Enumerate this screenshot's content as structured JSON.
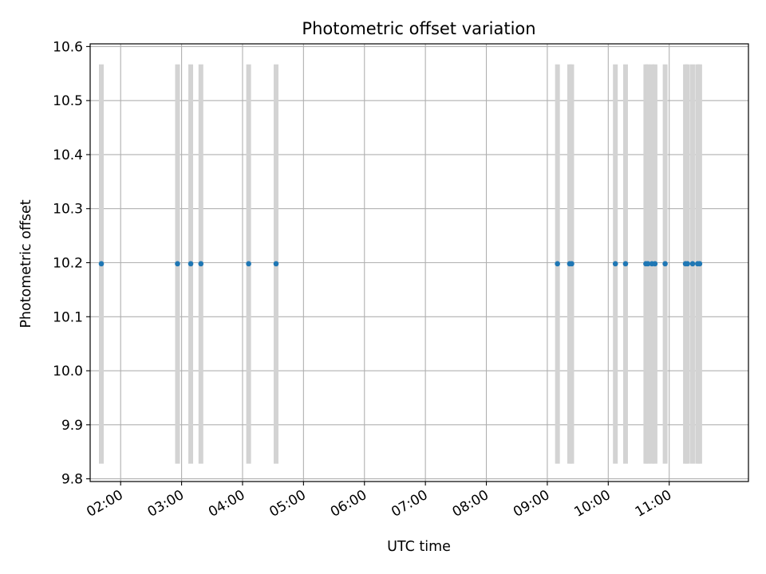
{
  "chart_data": {
    "type": "scatter",
    "title": "Photometric offset variation",
    "xlabel": "UTC time",
    "ylabel": "Photometric offset",
    "ylim": [
      9.795,
      10.605
    ],
    "xlim": [
      "01:30",
      "12:18"
    ],
    "grid": true,
    "yticks": [
      9.8,
      9.9,
      10.0,
      10.1,
      10.2,
      10.3,
      10.4,
      10.5,
      10.6
    ],
    "ytick_labels": [
      "9.8",
      "9.9",
      "10.0",
      "10.1",
      "10.2",
      "10.3",
      "10.4",
      "10.5",
      "10.6"
    ],
    "xticks": [
      "02:00",
      "03:00",
      "04:00",
      "05:00",
      "06:00",
      "07:00",
      "08:00",
      "09:00",
      "10:00",
      "11:00"
    ],
    "error_bar_range": [
      9.828,
      10.567
    ],
    "x": [
      "01:41",
      "02:56",
      "03:09",
      "03:19",
      "04:06",
      "04:33",
      "09:10",
      "09:22",
      "09:24",
      "10:07",
      "10:17",
      "10:37",
      "10:39",
      "10:43",
      "10:46",
      "10:56",
      "11:16",
      "11:18",
      "11:23",
      "11:28",
      "11:30"
    ],
    "y": [
      10.198,
      10.198,
      10.198,
      10.198,
      10.198,
      10.198,
      10.198,
      10.198,
      10.198,
      10.198,
      10.198,
      10.198,
      10.198,
      10.198,
      10.198,
      10.198,
      10.198,
      10.198,
      10.198,
      10.198,
      10.198
    ],
    "colors": {
      "points": "#1f77b4",
      "error_bars": "#d3d3d3",
      "grid": "#b0b0b0",
      "axes": "#000000"
    }
  }
}
